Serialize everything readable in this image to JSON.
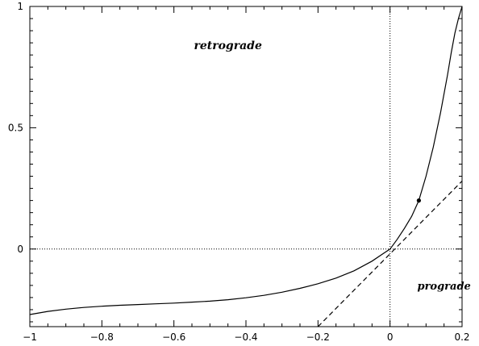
{
  "chart_data": {
    "type": "line",
    "title": "",
    "xlabel": "",
    "ylabel": "",
    "xlim": [
      -1,
      0.2
    ],
    "ylim": [
      -0.32,
      1
    ],
    "grid": false,
    "x_ticks": [
      -1,
      -0.8,
      -0.6,
      -0.4,
      -0.2,
      0,
      0.2
    ],
    "x_tick_labels": [
      "−1",
      "−0.8",
      "−0.6",
      "−0.4",
      "−0.2",
      "0",
      "0.2"
    ],
    "y_ticks": [
      0,
      0.5,
      1
    ],
    "y_tick_labels": [
      "0",
      "0.5",
      "1"
    ],
    "series": [
      {
        "style": "solid",
        "x": [
          -1,
          -0.95,
          -0.9,
          -0.85,
          -0.8,
          -0.75,
          -0.7,
          -0.65,
          -0.6,
          -0.55,
          -0.5,
          -0.45,
          -0.4,
          -0.35,
          -0.3,
          -0.25,
          -0.2,
          -0.15,
          -0.1,
          -0.05,
          -0.02,
          0,
          0.02,
          0.04,
          0.06,
          0.08,
          0.1,
          0.12,
          0.14,
          0.16,
          0.17,
          0.18,
          0.19,
          0.2
        ],
        "y": [
          -0.27,
          -0.257,
          -0.248,
          -0.241,
          -0.236,
          -0.232,
          -0.229,
          -0.226,
          -0.223,
          -0.219,
          -0.215,
          -0.209,
          -0.201,
          -0.191,
          -0.178,
          -0.162,
          -0.143,
          -0.12,
          -0.09,
          -0.05,
          -0.02,
          0,
          0.04,
          0.085,
          0.135,
          0.2,
          0.3,
          0.42,
          0.56,
          0.72,
          0.81,
          0.89,
          0.95,
          1.0
        ]
      },
      {
        "style": "dashed",
        "x": [
          -0.2,
          0.2
        ],
        "y": [
          -0.32,
          0.28
        ]
      }
    ],
    "reference_lines": [
      {
        "style": "dotted",
        "orientation": "vertical",
        "value": 0
      },
      {
        "style": "dotted",
        "orientation": "horizontal",
        "value": 0
      }
    ],
    "points": [
      {
        "x": 0.08,
        "y": 0.2
      }
    ],
    "annotations": [
      {
        "text": "retrograde",
        "x": -0.45,
        "y": 0.84
      },
      {
        "text": "prograde",
        "x": 0.15,
        "y": -0.15
      }
    ]
  },
  "colors": {
    "line": "#000000",
    "background": "#ffffff"
  }
}
